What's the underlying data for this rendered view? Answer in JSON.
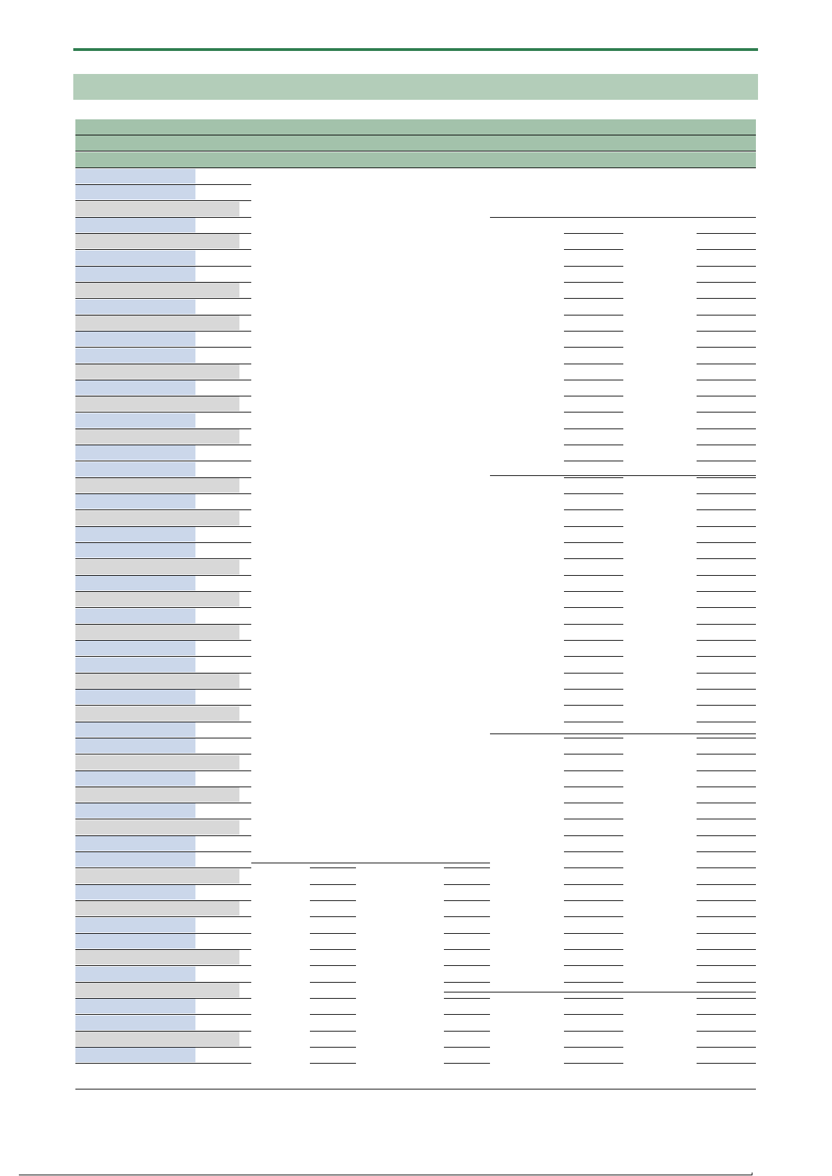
{
  "page": {
    "title": "",
    "section_heading": "",
    "table": {
      "header_rows": [
        "",
        "",
        ""
      ],
      "row_count": 57,
      "rows": []
    }
  },
  "colors": {
    "accent_rule": "#2e7d4f",
    "section_band": "#b3cdb9",
    "header_band": "#a3c2ab",
    "label_blue": "#cbd7ea",
    "label_gray": "#d8d8d8"
  }
}
